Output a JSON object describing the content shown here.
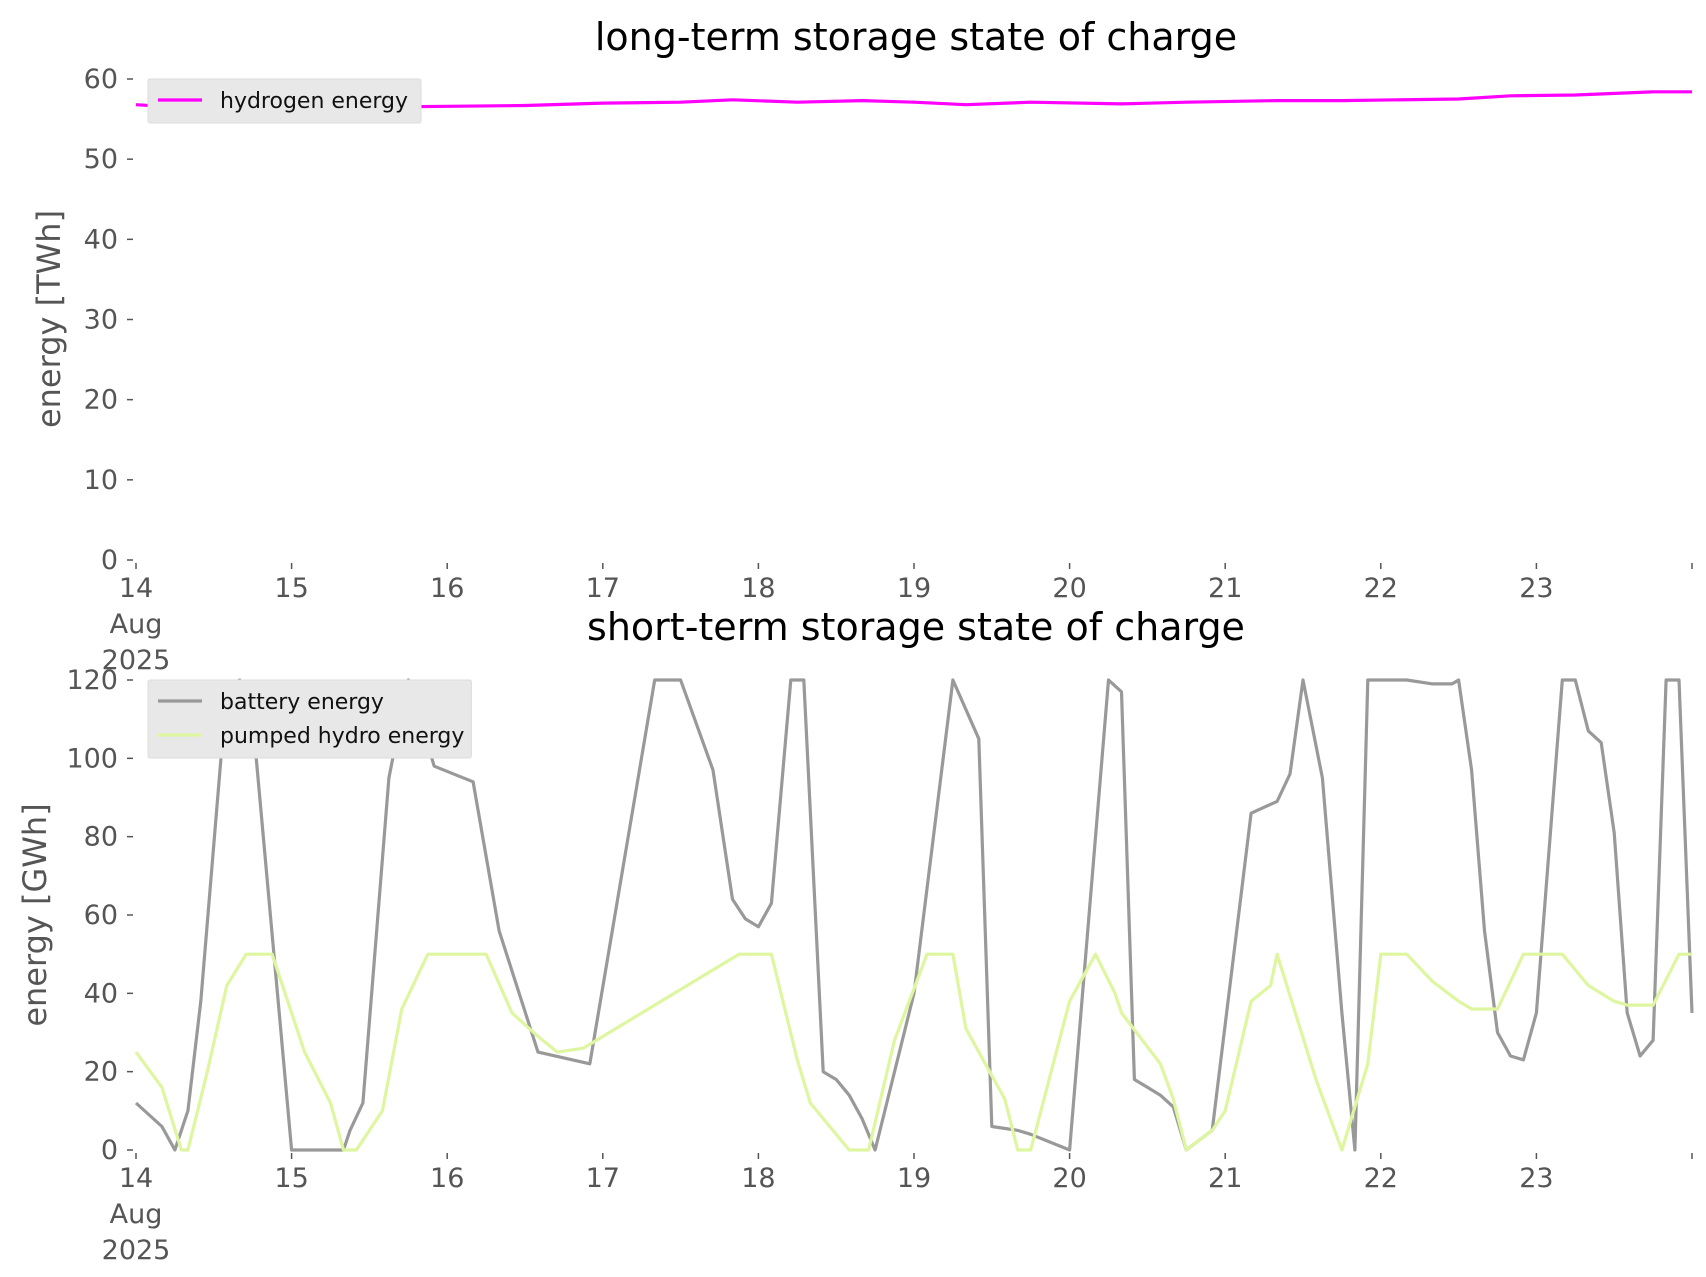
{
  "chart_data": [
    {
      "type": "line",
      "title": "long-term storage state of charge",
      "ylabel": "energy [TWh]",
      "ylim": [
        0,
        60
      ],
      "yticks": [
        "0",
        "10",
        "20",
        "30",
        "40",
        "50",
        "60"
      ],
      "xlim": [
        "2025-08-14",
        "2025-08-24"
      ],
      "xticks": [
        "14",
        "15",
        "16",
        "17",
        "18",
        "19",
        "20",
        "21",
        "22",
        "23"
      ],
      "x_first_tick_extra": [
        "Aug",
        "2025"
      ],
      "grid": false,
      "legend": "top-left",
      "series": [
        {
          "name": "hydrogen energy",
          "color": "#ff00ff",
          "x": [
            "2025-08-14 00:00",
            "2025-08-14 06:00",
            "2025-08-14 12:00",
            "2025-08-14 18:00",
            "2025-08-15 00:00",
            "2025-08-15 12:00",
            "2025-08-16 00:00",
            "2025-08-16 12:00",
            "2025-08-17 00:00",
            "2025-08-17 12:00",
            "2025-08-17 20:00",
            "2025-08-18 06:00",
            "2025-08-18 16:00",
            "2025-08-19 00:00",
            "2025-08-19 08:00",
            "2025-08-19 18:00",
            "2025-08-20 08:00",
            "2025-08-20 18:00",
            "2025-08-21 08:00",
            "2025-08-21 18:00",
            "2025-08-22 12:00",
            "2025-08-22 20:00",
            "2025-08-23 06:00",
            "2025-08-23 18:00",
            "2025-08-24 00:00"
          ],
          "values": [
            56.8,
            56.5,
            56.6,
            56.8,
            56.6,
            56.5,
            56.6,
            56.7,
            57.0,
            57.1,
            57.4,
            57.1,
            57.3,
            57.1,
            56.8,
            57.1,
            56.9,
            57.1,
            57.3,
            57.3,
            57.5,
            57.9,
            58.0,
            58.4,
            58.4
          ]
        }
      ]
    },
    {
      "type": "line",
      "title": "short-term storage state of charge",
      "ylabel": "energy [GWh]",
      "ylim": [
        0,
        120
      ],
      "yticks": [
        "0",
        "20",
        "40",
        "60",
        "80",
        "100",
        "120"
      ],
      "xlim": [
        "2025-08-14",
        "2025-08-24"
      ],
      "xticks": [
        "14",
        "15",
        "16",
        "17",
        "18",
        "19",
        "20",
        "21",
        "22",
        "23"
      ],
      "x_first_tick_extra": [
        "Aug",
        "2025"
      ],
      "grid": false,
      "legend": "top-left",
      "series": [
        {
          "name": "battery energy",
          "color": "#999999",
          "x": [
            "2025-08-14 00:00",
            "2025-08-14 04:00",
            "2025-08-14 06:00",
            "2025-08-14 08:00",
            "2025-08-14 10:00",
            "2025-08-14 14:00",
            "2025-08-14 16:00",
            "2025-08-14 18:00",
            "2025-08-15 00:00",
            "2025-08-15 08:00",
            "2025-08-15 09:00",
            "2025-08-15 11:00",
            "2025-08-15 15:00",
            "2025-08-15 18:00",
            "2025-08-15 22:00",
            "2025-08-16 04:00",
            "2025-08-16 08:00",
            "2025-08-16 14:00",
            "2025-08-16 22:00",
            "2025-08-17 08:00",
            "2025-08-17 12:00",
            "2025-08-17 17:00",
            "2025-08-17 20:00",
            "2025-08-17 22:00",
            "2025-08-18 00:00",
            "2025-08-18 02:00",
            "2025-08-18 05:00",
            "2025-08-18 07:00",
            "2025-08-18 10:00",
            "2025-08-18 12:00",
            "2025-08-18 14:00",
            "2025-08-18 16:00",
            "2025-08-18 18:00",
            "2025-08-19 00:00",
            "2025-08-19 06:00",
            "2025-08-19 10:00",
            "2025-08-19 12:00",
            "2025-08-19 16:00",
            "2025-08-19 18:00",
            "2025-08-20 00:00",
            "2025-08-20 06:00",
            "2025-08-20 08:00",
            "2025-08-20 10:00",
            "2025-08-20 12:00",
            "2025-08-20 14:00",
            "2025-08-20 16:00",
            "2025-08-20 18:00",
            "2025-08-20 22:00",
            "2025-08-21 04:00",
            "2025-08-21 08:00",
            "2025-08-21 10:00",
            "2025-08-21 12:00",
            "2025-08-21 15:00",
            "2025-08-21 18:00",
            "2025-08-21 20:00",
            "2025-08-21 22:00",
            "2025-08-22 04:00",
            "2025-08-22 08:00",
            "2025-08-22 11:00",
            "2025-08-22 12:00",
            "2025-08-22 14:00",
            "2025-08-22 16:00",
            "2025-08-22 18:00",
            "2025-08-22 20:00",
            "2025-08-22 22:00",
            "2025-08-23 00:00",
            "2025-08-23 04:00",
            "2025-08-23 06:00",
            "2025-08-23 08:00",
            "2025-08-23 10:00",
            "2025-08-23 12:00",
            "2025-08-23 14:00",
            "2025-08-23 16:00",
            "2025-08-23 18:00",
            "2025-08-23 20:00",
            "2025-08-23 22:00",
            "2025-08-24 00:00"
          ],
          "values": [
            12,
            6,
            0,
            10,
            38,
            118,
            120,
            110,
            0,
            0,
            5,
            12,
            95,
            120,
            98,
            94,
            56,
            25,
            22,
            120,
            120,
            97,
            64,
            59,
            57,
            63,
            120,
            120,
            20,
            18,
            14,
            8,
            0,
            40,
            120,
            105,
            6,
            5,
            4,
            0,
            120,
            117,
            18,
            16,
            14,
            11,
            0,
            5,
            86,
            89,
            96,
            120,
            95,
            35,
            0,
            120,
            120,
            119,
            119,
            120,
            97,
            56,
            30,
            24,
            23,
            35,
            120,
            120,
            107,
            104,
            81,
            35,
            24,
            28,
            120,
            120,
            35
          ]
        },
        {
          "name": "pumped hydro energy",
          "color": "#dff6a0",
          "x": [
            "2025-08-14 00:00",
            "2025-08-14 04:00",
            "2025-08-14 07:00",
            "2025-08-14 08:00",
            "2025-08-14 11:00",
            "2025-08-14 14:00",
            "2025-08-14 17:00",
            "2025-08-14 21:00",
            "2025-08-15 02:00",
            "2025-08-15 06:00",
            "2025-08-15 08:00",
            "2025-08-15 10:00",
            "2025-08-15 14:00",
            "2025-08-15 17:00",
            "2025-08-15 21:00",
            "2025-08-16 06:00",
            "2025-08-16 10:00",
            "2025-08-16 14:00",
            "2025-08-16 17:00",
            "2025-08-16 21:00",
            "2025-08-17 21:00",
            "2025-08-17 22:00",
            "2025-08-18 02:00",
            "2025-08-18 06:00",
            "2025-08-18 08:00",
            "2025-08-18 14:00",
            "2025-08-18 17:00",
            "2025-08-18 21:00",
            "2025-08-19 02:00",
            "2025-08-19 06:00",
            "2025-08-19 08:00",
            "2025-08-19 14:00",
            "2025-08-19 16:00",
            "2025-08-19 18:00",
            "2025-08-20 00:00",
            "2025-08-20 04:00",
            "2025-08-20 07:00",
            "2025-08-20 08:00",
            "2025-08-20 14:00",
            "2025-08-20 16:00",
            "2025-08-20 18:00",
            "2025-08-20 22:00",
            "2025-08-21 00:00",
            "2025-08-21 04:00",
            "2025-08-21 07:00",
            "2025-08-21 08:00",
            "2025-08-21 14:00",
            "2025-08-21 18:00",
            "2025-08-21 22:00",
            "2025-08-22 00:00",
            "2025-08-22 04:00",
            "2025-08-22 08:00",
            "2025-08-22 12:00",
            "2025-08-22 14:00",
            "2025-08-22 18:00",
            "2025-08-22 22:00",
            "2025-08-23 00:00",
            "2025-08-23 04:00",
            "2025-08-23 08:00",
            "2025-08-23 12:00",
            "2025-08-23 14:00",
            "2025-08-23 18:00",
            "2025-08-23 22:00",
            "2025-08-24 00:00"
          ],
          "values": [
            25,
            16,
            0,
            0,
            20,
            42,
            50,
            50,
            25,
            12,
            0,
            0,
            10,
            36,
            50,
            50,
            35,
            29,
            25,
            26,
            50,
            50,
            50,
            23,
            12,
            0,
            0,
            28,
            50,
            50,
            31,
            13,
            0,
            0,
            38,
            50,
            40,
            35,
            22,
            13,
            0,
            5,
            10,
            38,
            42,
            50,
            18,
            0,
            22,
            50,
            50,
            43,
            38,
            36,
            36,
            50,
            50,
            50,
            42,
            38,
            37,
            37,
            50,
            50
          ]
        }
      ]
    }
  ]
}
